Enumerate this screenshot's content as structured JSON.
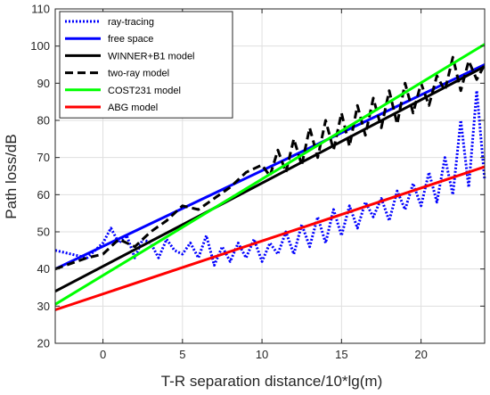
{
  "chart_data": {
    "type": "line",
    "xlabel": "T-R separation distance/10*lg(m)",
    "ylabel": "Path loss/dB",
    "xlim": [
      -3,
      24
    ],
    "ylim": [
      20,
      110
    ],
    "xticks": [
      0,
      5,
      10,
      15,
      20
    ],
    "yticks": [
      20,
      30,
      40,
      50,
      60,
      70,
      80,
      90,
      100,
      110
    ],
    "grid": true,
    "legend_position": "top-left",
    "series": [
      {
        "name": "ray-tracing",
        "color": "#0000ff",
        "style": "dotted",
        "x": [
          -3,
          -2,
          -1,
          0,
          0.5,
          1,
          1.5,
          2,
          2.5,
          3,
          3.5,
          4,
          4.5,
          5,
          5.5,
          6,
          6.5,
          7,
          7.5,
          8,
          8.5,
          9,
          9.5,
          10,
          10.5,
          11,
          11.5,
          12,
          12.5,
          13,
          13.5,
          14,
          14.5,
          15,
          15.5,
          16,
          16.5,
          17,
          17.5,
          18,
          18.5,
          19,
          19.5,
          20,
          20.5,
          21,
          21.5,
          22,
          22.5,
          23,
          23.5,
          24
        ],
        "y": [
          45,
          44,
          43,
          47,
          51,
          47,
          49,
          43,
          48,
          47,
          43,
          48,
          45,
          44,
          47,
          43,
          49,
          41,
          46,
          42,
          47,
          43,
          48,
          42,
          47,
          44,
          50,
          44,
          52,
          46,
          54,
          47,
          56,
          49,
          57,
          51,
          58,
          54,
          59,
          53,
          61,
          56,
          63,
          57,
          66,
          58,
          70,
          60,
          80,
          62,
          88,
          64
        ]
      },
      {
        "name": "free space",
        "color": "#0000ff",
        "style": "solid",
        "x": [
          -3,
          24
        ],
        "y": [
          40,
          95
        ]
      },
      {
        "name": "WINNER+B1 model",
        "color": "#000000",
        "style": "solid",
        "x": [
          -3,
          24
        ],
        "y": [
          34,
          94.5
        ]
      },
      {
        "name": "two-ray model",
        "color": "#000000",
        "style": "dashed",
        "x": [
          -3,
          -1,
          0,
          1,
          2,
          3,
          4,
          5,
          6,
          7,
          8,
          9,
          10,
          10.5,
          11,
          11.5,
          12,
          12.5,
          13,
          13.5,
          14,
          14.5,
          15,
          15.5,
          16,
          16.5,
          17,
          17.5,
          18,
          18.5,
          19,
          19.5,
          20,
          20.5,
          21,
          21.5,
          22,
          22.5,
          23,
          23.5,
          24
        ],
        "y": [
          40,
          43,
          44,
          48,
          46,
          50,
          53,
          57,
          56,
          59,
          62,
          66,
          68,
          65,
          72,
          66,
          75,
          68,
          78,
          70,
          80,
          72,
          82,
          73,
          84,
          76,
          86,
          78,
          88,
          79,
          90,
          82,
          90,
          84,
          92,
          88,
          97,
          88,
          96,
          91,
          95
        ]
      },
      {
        "name": "COST231 model",
        "color": "#00ff00",
        "style": "solid",
        "x": [
          -3,
          24
        ],
        "y": [
          30.5,
          100.5
        ]
      },
      {
        "name": "ABG model",
        "color": "#ff0000",
        "style": "solid",
        "x": [
          -3,
          24
        ],
        "y": [
          29,
          67.5
        ]
      }
    ]
  }
}
